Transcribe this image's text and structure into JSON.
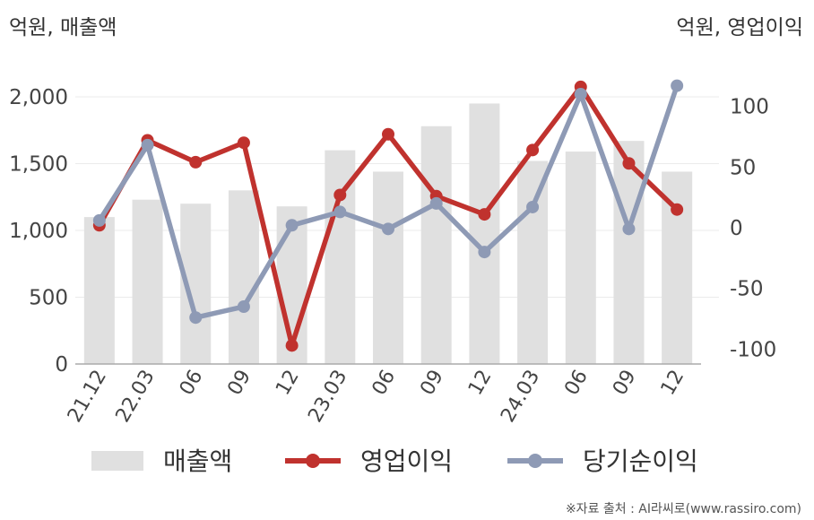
{
  "chart_data": {
    "type": "bar+line",
    "left_axis_unit": "억원, 매출액",
    "right_axis_unit": "억원, 영업이익",
    "categories": [
      "21.12",
      "22.03",
      "06",
      "09",
      "12",
      "23.03",
      "06",
      "09",
      "12",
      "24.03",
      "06",
      "09",
      "12"
    ],
    "left_axis": {
      "ticks": [
        "2,000",
        "1,500",
        "1,000",
        "500",
        "0"
      ],
      "tick_values": [
        2000,
        1500,
        1000,
        500,
        0
      ],
      "ylim": [
        0,
        2200
      ]
    },
    "right_axis": {
      "ticks": [
        "100",
        "50",
        "0",
        "-50",
        "-100"
      ],
      "tick_values": [
        100,
        50,
        0,
        -50,
        -100
      ],
      "ylim": [
        -112,
        130
      ]
    },
    "series": [
      {
        "name": "매출액",
        "type": "bar",
        "axis": "left",
        "color": "#e0e0e0",
        "values": [
          1100,
          1230,
          1200,
          1300,
          1180,
          1600,
          1440,
          1780,
          1950,
          1520,
          1590,
          1670,
          1440
        ]
      },
      {
        "name": "영업이익",
        "type": "line",
        "axis": "right",
        "color": "#c0322e",
        "values": [
          2,
          72,
          54,
          70,
          -97,
          27,
          77,
          26,
          11,
          64,
          116,
          53,
          15
        ]
      },
      {
        "name": "당기순이익",
        "type": "line",
        "axis": "right",
        "color": "#8e9ab5",
        "values": [
          6,
          68,
          -74,
          -65,
          2,
          13,
          -1,
          20,
          -20,
          17,
          110,
          -1,
          117
        ]
      }
    ],
    "legend_position": "bottom",
    "grid": true
  },
  "source_text": "※자료 출처 : AI라씨로(www.rassiro.com)"
}
